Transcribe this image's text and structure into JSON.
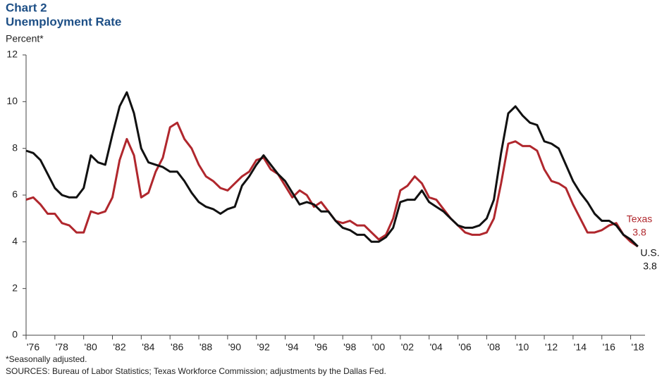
{
  "chart_data": {
    "type": "line",
    "title": "Chart 2",
    "subtitle": "Unemployment Rate",
    "y_label": "Percent*",
    "note": "*Seasonally adjusted.",
    "source": "SOURCES: Bureau of Labor Statistics; Texas Workforce Commission; adjustments by the Dallas Fed.",
    "x": [
      1976.0,
      1976.5,
      1977.0,
      1977.5,
      1978.0,
      1978.5,
      1979.0,
      1979.5,
      1980.0,
      1980.5,
      1981.0,
      1981.5,
      1982.0,
      1982.5,
      1983.0,
      1983.5,
      1984.0,
      1984.5,
      1985.0,
      1985.5,
      1986.0,
      1986.5,
      1987.0,
      1987.5,
      1988.0,
      1988.5,
      1989.0,
      1989.5,
      1990.0,
      1990.5,
      1991.0,
      1991.5,
      1992.0,
      1992.5,
      1993.0,
      1993.5,
      1994.0,
      1994.5,
      1995.0,
      1995.5,
      1996.0,
      1996.5,
      1997.0,
      1997.5,
      1998.0,
      1998.5,
      1999.0,
      1999.5,
      2000.0,
      2000.5,
      2001.0,
      2001.5,
      2002.0,
      2002.5,
      2003.0,
      2003.5,
      2004.0,
      2004.5,
      2005.0,
      2005.5,
      2006.0,
      2006.5,
      2007.0,
      2007.5,
      2008.0,
      2008.5,
      2009.0,
      2009.5,
      2010.0,
      2010.5,
      2011.0,
      2011.5,
      2012.0,
      2012.5,
      2013.0,
      2013.5,
      2014.0,
      2014.5,
      2015.0,
      2015.5,
      2016.0,
      2016.5,
      2017.0,
      2017.5,
      2018.0,
      2018.5
    ],
    "series": [
      {
        "name": "Texas",
        "color": "#b0272d",
        "values": [
          5.8,
          5.9,
          5.6,
          5.2,
          5.2,
          4.8,
          4.7,
          4.4,
          4.4,
          5.3,
          5.2,
          5.3,
          5.9,
          7.5,
          8.4,
          7.7,
          5.9,
          6.1,
          7.0,
          7.6,
          8.9,
          9.1,
          8.4,
          8.0,
          7.3,
          6.8,
          6.6,
          6.3,
          6.2,
          6.5,
          6.8,
          7.0,
          7.5,
          7.6,
          7.1,
          6.9,
          6.4,
          5.9,
          6.2,
          6.0,
          5.5,
          5.7,
          5.3,
          4.9,
          4.8,
          4.9,
          4.7,
          4.7,
          4.4,
          4.1,
          4.3,
          5.0,
          6.2,
          6.4,
          6.8,
          6.5,
          5.9,
          5.8,
          5.4,
          5.0,
          4.7,
          4.4,
          4.3,
          4.3,
          4.4,
          5.0,
          6.5,
          8.2,
          8.3,
          8.1,
          8.1,
          7.9,
          7.1,
          6.6,
          6.5,
          6.3,
          5.6,
          5.0,
          4.4,
          4.4,
          4.5,
          4.7,
          4.8,
          4.3,
          4.0,
          3.8
        ]
      },
      {
        "name": "U.S.",
        "color": "#111111",
        "values": [
          7.9,
          7.8,
          7.5,
          6.9,
          6.3,
          6.0,
          5.9,
          5.9,
          6.3,
          7.7,
          7.4,
          7.3,
          8.6,
          9.8,
          10.4,
          9.5,
          8.0,
          7.4,
          7.3,
          7.2,
          7.0,
          7.0,
          6.6,
          6.1,
          5.7,
          5.5,
          5.4,
          5.2,
          5.4,
          5.5,
          6.4,
          6.8,
          7.3,
          7.7,
          7.3,
          6.9,
          6.6,
          6.1,
          5.6,
          5.7,
          5.6,
          5.3,
          5.3,
          4.9,
          4.6,
          4.5,
          4.3,
          4.3,
          4.0,
          4.0,
          4.2,
          4.6,
          5.7,
          5.8,
          5.8,
          6.2,
          5.7,
          5.5,
          5.3,
          5.0,
          4.7,
          4.6,
          4.6,
          4.7,
          5.0,
          5.8,
          7.8,
          9.5,
          9.8,
          9.4,
          9.1,
          9.0,
          8.3,
          8.2,
          8.0,
          7.3,
          6.6,
          6.1,
          5.7,
          5.2,
          4.9,
          4.9,
          4.7,
          4.3,
          4.1,
          3.8
        ]
      }
    ],
    "xlim": [
      1976,
      2019
    ],
    "xticks": [
      {
        "value": 1976,
        "label": "'76"
      },
      {
        "value": 1978,
        "label": "'78"
      },
      {
        "value": 1980,
        "label": "'80"
      },
      {
        "value": 1982,
        "label": "'82"
      },
      {
        "value": 1984,
        "label": "'84"
      },
      {
        "value": 1986,
        "label": "'86"
      },
      {
        "value": 1988,
        "label": "'88"
      },
      {
        "value": 1990,
        "label": "'90"
      },
      {
        "value": 1992,
        "label": "'92"
      },
      {
        "value": 1994,
        "label": "'94"
      },
      {
        "value": 1996,
        "label": "'96"
      },
      {
        "value": 1998,
        "label": "'98"
      },
      {
        "value": 2000,
        "label": "'00"
      },
      {
        "value": 2002,
        "label": "'02"
      },
      {
        "value": 2004,
        "label": "'04"
      },
      {
        "value": 2006,
        "label": "'06"
      },
      {
        "value": 2008,
        "label": "'08"
      },
      {
        "value": 2010,
        "label": "'10"
      },
      {
        "value": 2012,
        "label": "'12"
      },
      {
        "value": 2014,
        "label": "'14"
      },
      {
        "value": 2016,
        "label": "'16"
      },
      {
        "value": 2018,
        "label": "'18"
      }
    ],
    "ylim": [
      0,
      12
    ],
    "yticks": [
      0,
      2,
      4,
      6,
      8,
      10,
      12
    ],
    "grid": false
  }
}
